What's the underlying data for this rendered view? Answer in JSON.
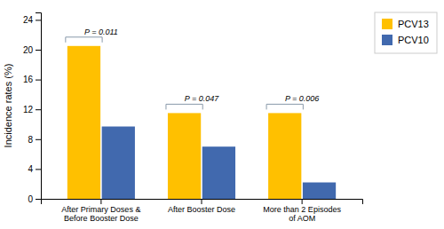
{
  "chart_data": {
    "type": "bar",
    "categories": [
      "After Primary Doses &\nBefore Booster Dose",
      "After Booster Dose",
      "More than 2 Episodes\nof AOM"
    ],
    "series": [
      {
        "name": "PCV13",
        "color": "#FFC000",
        "values": [
          20.5,
          11.5,
          11.5
        ]
      },
      {
        "name": "PCV10",
        "color": "#4169AE",
        "values": [
          9.7,
          7.0,
          2.2
        ]
      }
    ],
    "ylabel": "Incidence rates (%)",
    "ylim": [
      0,
      25
    ],
    "yticks": [
      0,
      4,
      8,
      12,
      16,
      20,
      24
    ],
    "annotations": [
      "P = 0.011",
      "P = 0.047",
      "P = 0.006"
    ],
    "legend": "right",
    "grid": false
  }
}
